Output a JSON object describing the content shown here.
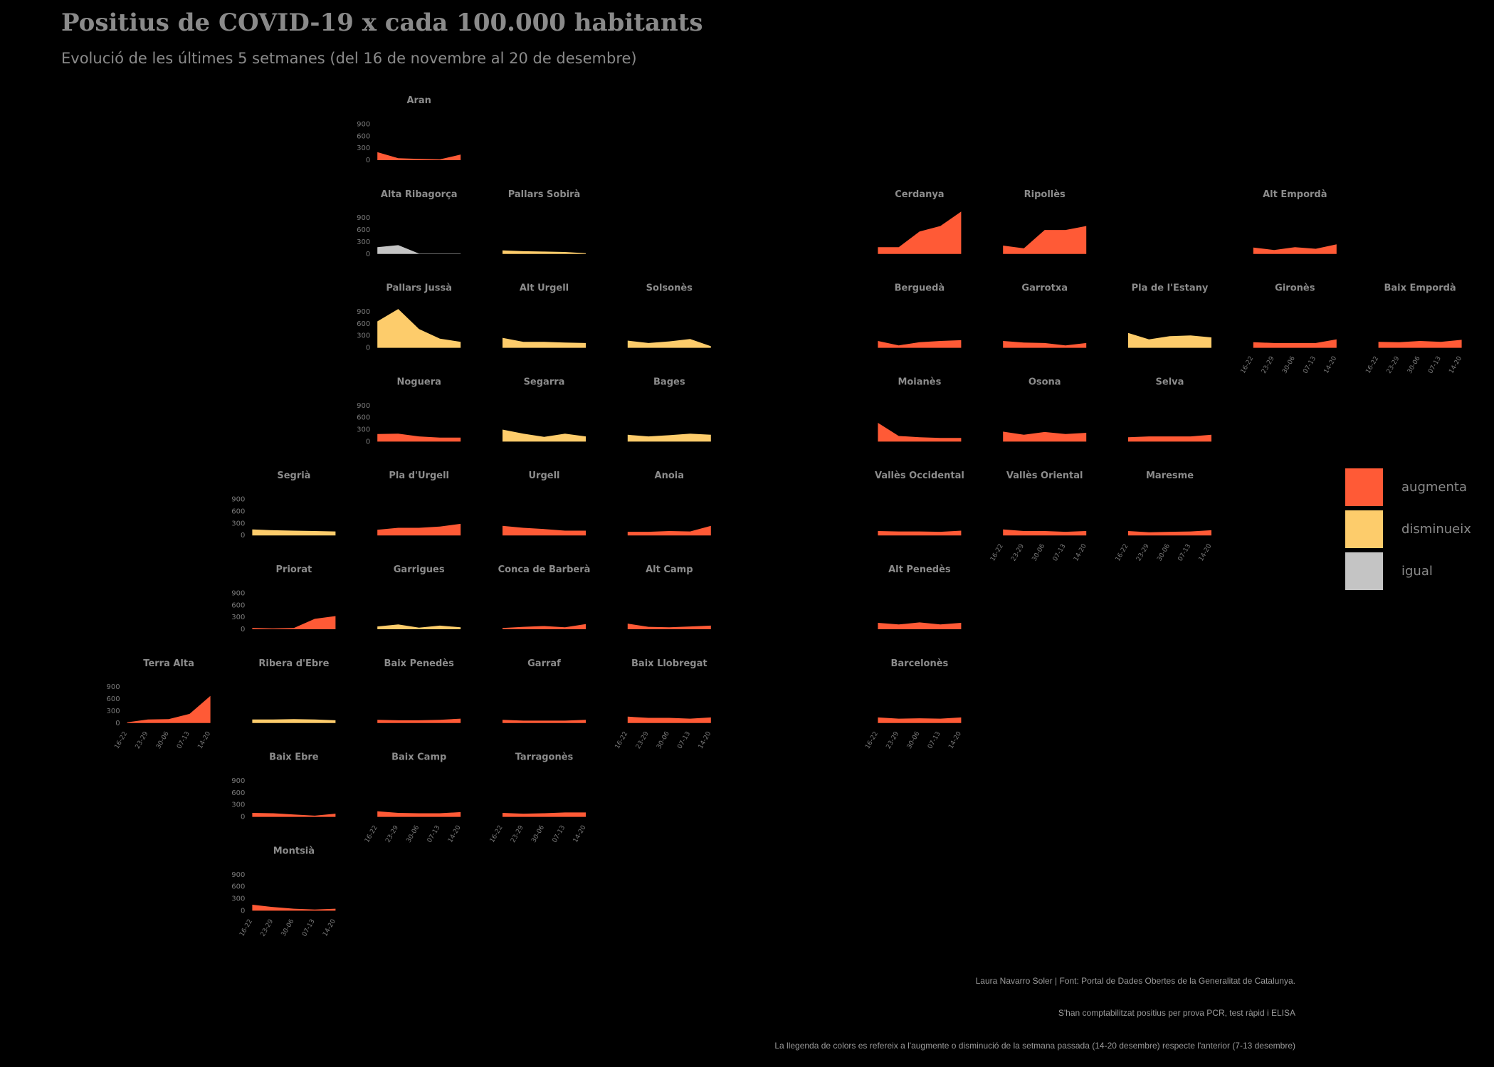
{
  "title": "Positius de COVID-19 x cada 100.000 habitants",
  "subtitle": "Evolució de les últimes 5 setmanes (del 16 de novembre al 20 de desembre)",
  "captions": {
    "author": "Laura Navarro Soler | Font: Portal de Dades Obertes de la Generalitat de Catalunya.",
    "note": "S'han comptabilitzat positius per prova PCR, test ràpid i ELISA",
    "legend_note": "La llegenda de colors es refereix a l'augmente o disminució de la setmana passada (14-20 desembre) respecte l'anterior (7-13 desembre)"
  },
  "legend": [
    {
      "key": "augmenta",
      "label": "augmenta",
      "color": "#ff5a36"
    },
    {
      "key": "disminueix",
      "label": "disminueix",
      "color": "#fdcc6b"
    },
    {
      "key": "igual",
      "label": "igual",
      "color": "#c4c4c4"
    }
  ],
  "chart_data": {
    "type": "area",
    "x": [
      "16-22",
      "23-29",
      "30-06",
      "07-13",
      "14-20"
    ],
    "y_ticks": [
      "900",
      "600",
      "300",
      "0"
    ],
    "ylim": [
      0,
      1050
    ],
    "series": [
      {
        "name": "Aran",
        "row": 0,
        "col": 4,
        "status": "augmenta",
        "values": [
          200,
          50,
          30,
          20,
          140
        ]
      },
      {
        "name": "Alta Ribagorça",
        "row": 1,
        "col": 4,
        "status": "igual",
        "values": [
          170,
          220,
          10,
          10,
          10
        ]
      },
      {
        "name": "Pallars Sobirà",
        "row": 1,
        "col": 5,
        "status": "disminueix",
        "values": [
          90,
          70,
          60,
          50,
          20
        ]
      },
      {
        "name": "Cerdanya",
        "row": 1,
        "col": 8,
        "status": "augmenta",
        "values": [
          170,
          170,
          560,
          700,
          1060
        ]
      },
      {
        "name": "Ripollès",
        "row": 1,
        "col": 9,
        "status": "augmenta",
        "values": [
          210,
          140,
          600,
          600,
          700
        ]
      },
      {
        "name": "Alt Empordà",
        "row": 1,
        "col": 11,
        "status": "augmenta",
        "values": [
          160,
          100,
          170,
          130,
          240
        ]
      },
      {
        "name": "Pallars Jussà",
        "row": 2,
        "col": 4,
        "status": "disminueix",
        "values": [
          660,
          970,
          470,
          230,
          150
        ]
      },
      {
        "name": "Alt Urgell",
        "row": 2,
        "col": 5,
        "status": "disminueix",
        "values": [
          250,
          150,
          150,
          130,
          120
        ]
      },
      {
        "name": "Solsonès",
        "row": 2,
        "col": 6,
        "status": "disminueix",
        "values": [
          180,
          120,
          160,
          220,
          40
        ]
      },
      {
        "name": "Berguedà",
        "row": 2,
        "col": 8,
        "status": "augmenta",
        "values": [
          170,
          60,
          140,
          170,
          190
        ]
      },
      {
        "name": "Garrotxa",
        "row": 2,
        "col": 9,
        "status": "augmenta",
        "values": [
          170,
          130,
          120,
          60,
          120
        ]
      },
      {
        "name": "Pla de l'Estany",
        "row": 2,
        "col": 10,
        "status": "disminueix",
        "values": [
          370,
          210,
          290,
          310,
          260
        ]
      },
      {
        "name": "Gironès",
        "row": 2,
        "col": 11,
        "status": "augmenta",
        "values": [
          140,
          120,
          120,
          120,
          210
        ]
      },
      {
        "name": "Baix Empordà",
        "row": 2,
        "col": 12,
        "status": "augmenta",
        "values": [
          150,
          140,
          170,
          150,
          200
        ]
      },
      {
        "name": "Noguera",
        "row": 3,
        "col": 4,
        "status": "augmenta",
        "values": [
          190,
          200,
          130,
          100,
          100
        ]
      },
      {
        "name": "Segarra",
        "row": 3,
        "col": 5,
        "status": "disminueix",
        "values": [
          300,
          200,
          120,
          200,
          130
        ]
      },
      {
        "name": "Bages",
        "row": 3,
        "col": 6,
        "status": "disminueix",
        "values": [
          170,
          130,
          160,
          200,
          170
        ]
      },
      {
        "name": "Moianès",
        "row": 3,
        "col": 8,
        "status": "augmenta",
        "values": [
          470,
          140,
          110,
          90,
          90
        ]
      },
      {
        "name": "Osona",
        "row": 3,
        "col": 9,
        "status": "augmenta",
        "values": [
          250,
          170,
          240,
          190,
          220
        ]
      },
      {
        "name": "Selva",
        "row": 3,
        "col": 10,
        "status": "augmenta",
        "values": [
          110,
          130,
          130,
          130,
          170
        ]
      },
      {
        "name": "Segrià",
        "row": 4,
        "col": 3,
        "status": "disminueix",
        "values": [
          150,
          130,
          120,
          110,
          100
        ]
      },
      {
        "name": "Pla d'Urgell",
        "row": 4,
        "col": 4,
        "status": "augmenta",
        "values": [
          140,
          190,
          190,
          220,
          290
        ]
      },
      {
        "name": "Urgell",
        "row": 4,
        "col": 5,
        "status": "augmenta",
        "values": [
          240,
          190,
          160,
          120,
          120
        ]
      },
      {
        "name": "Anoia",
        "row": 4,
        "col": 6,
        "status": "augmenta",
        "values": [
          90,
          90,
          110,
          100,
          240
        ]
      },
      {
        "name": "Vallès Occidental",
        "row": 4,
        "col": 8,
        "status": "augmenta",
        "values": [
          110,
          100,
          100,
          90,
          120
        ]
      },
      {
        "name": "Vallès Oriental",
        "row": 4,
        "col": 9,
        "status": "augmenta",
        "values": [
          150,
          110,
          110,
          90,
          110
        ]
      },
      {
        "name": "Maresme",
        "row": 4,
        "col": 10,
        "status": "augmenta",
        "values": [
          110,
          80,
          90,
          100,
          130
        ]
      },
      {
        "name": "Priorat",
        "row": 5,
        "col": 3,
        "status": "augmenta",
        "values": [
          30,
          20,
          30,
          260,
          330
        ]
      },
      {
        "name": "Garrigues",
        "row": 5,
        "col": 4,
        "status": "disminueix",
        "values": [
          70,
          120,
          40,
          90,
          50
        ]
      },
      {
        "name": "Conca de Barberà",
        "row": 5,
        "col": 5,
        "status": "augmenta",
        "values": [
          30,
          60,
          80,
          50,
          130
        ]
      },
      {
        "name": "Alt Camp",
        "row": 5,
        "col": 6,
        "status": "augmenta",
        "values": [
          140,
          60,
          50,
          70,
          90
        ]
      },
      {
        "name": "Alt Penedès",
        "row": 5,
        "col": 8,
        "status": "augmenta",
        "values": [
          160,
          120,
          170,
          120,
          160
        ]
      },
      {
        "name": "Terra Alta",
        "row": 6,
        "col": 2,
        "status": "augmenta",
        "values": [
          20,
          90,
          100,
          230,
          680
        ]
      },
      {
        "name": "Ribera d'Ebre",
        "row": 6,
        "col": 3,
        "status": "disminueix",
        "values": [
          90,
          90,
          100,
          90,
          70
        ]
      },
      {
        "name": "Baix Penedès",
        "row": 6,
        "col": 4,
        "status": "augmenta",
        "values": [
          80,
          70,
          70,
          80,
          110
        ]
      },
      {
        "name": "Garraf",
        "row": 6,
        "col": 5,
        "status": "augmenta",
        "values": [
          80,
          60,
          60,
          60,
          80
        ]
      },
      {
        "name": "Baix Llobregat",
        "row": 6,
        "col": 6,
        "status": "augmenta",
        "values": [
          160,
          130,
          130,
          110,
          140
        ]
      },
      {
        "name": "Barcelonès",
        "row": 6,
        "col": 8,
        "status": "augmenta",
        "values": [
          140,
          110,
          120,
          110,
          140
        ]
      },
      {
        "name": "Baix Ebre",
        "row": 7,
        "col": 3,
        "status": "augmenta",
        "values": [
          100,
          90,
          60,
          30,
          80
        ]
      },
      {
        "name": "Baix Camp",
        "row": 7,
        "col": 4,
        "status": "augmenta",
        "values": [
          140,
          100,
          90,
          90,
          120
        ]
      },
      {
        "name": "Tarragonès",
        "row": 7,
        "col": 5,
        "status": "augmenta",
        "values": [
          100,
          80,
          90,
          110,
          110
        ]
      },
      {
        "name": "Montsià",
        "row": 8,
        "col": 3,
        "status": "augmenta",
        "values": [
          150,
          90,
          50,
          30,
          50
        ]
      }
    ]
  }
}
